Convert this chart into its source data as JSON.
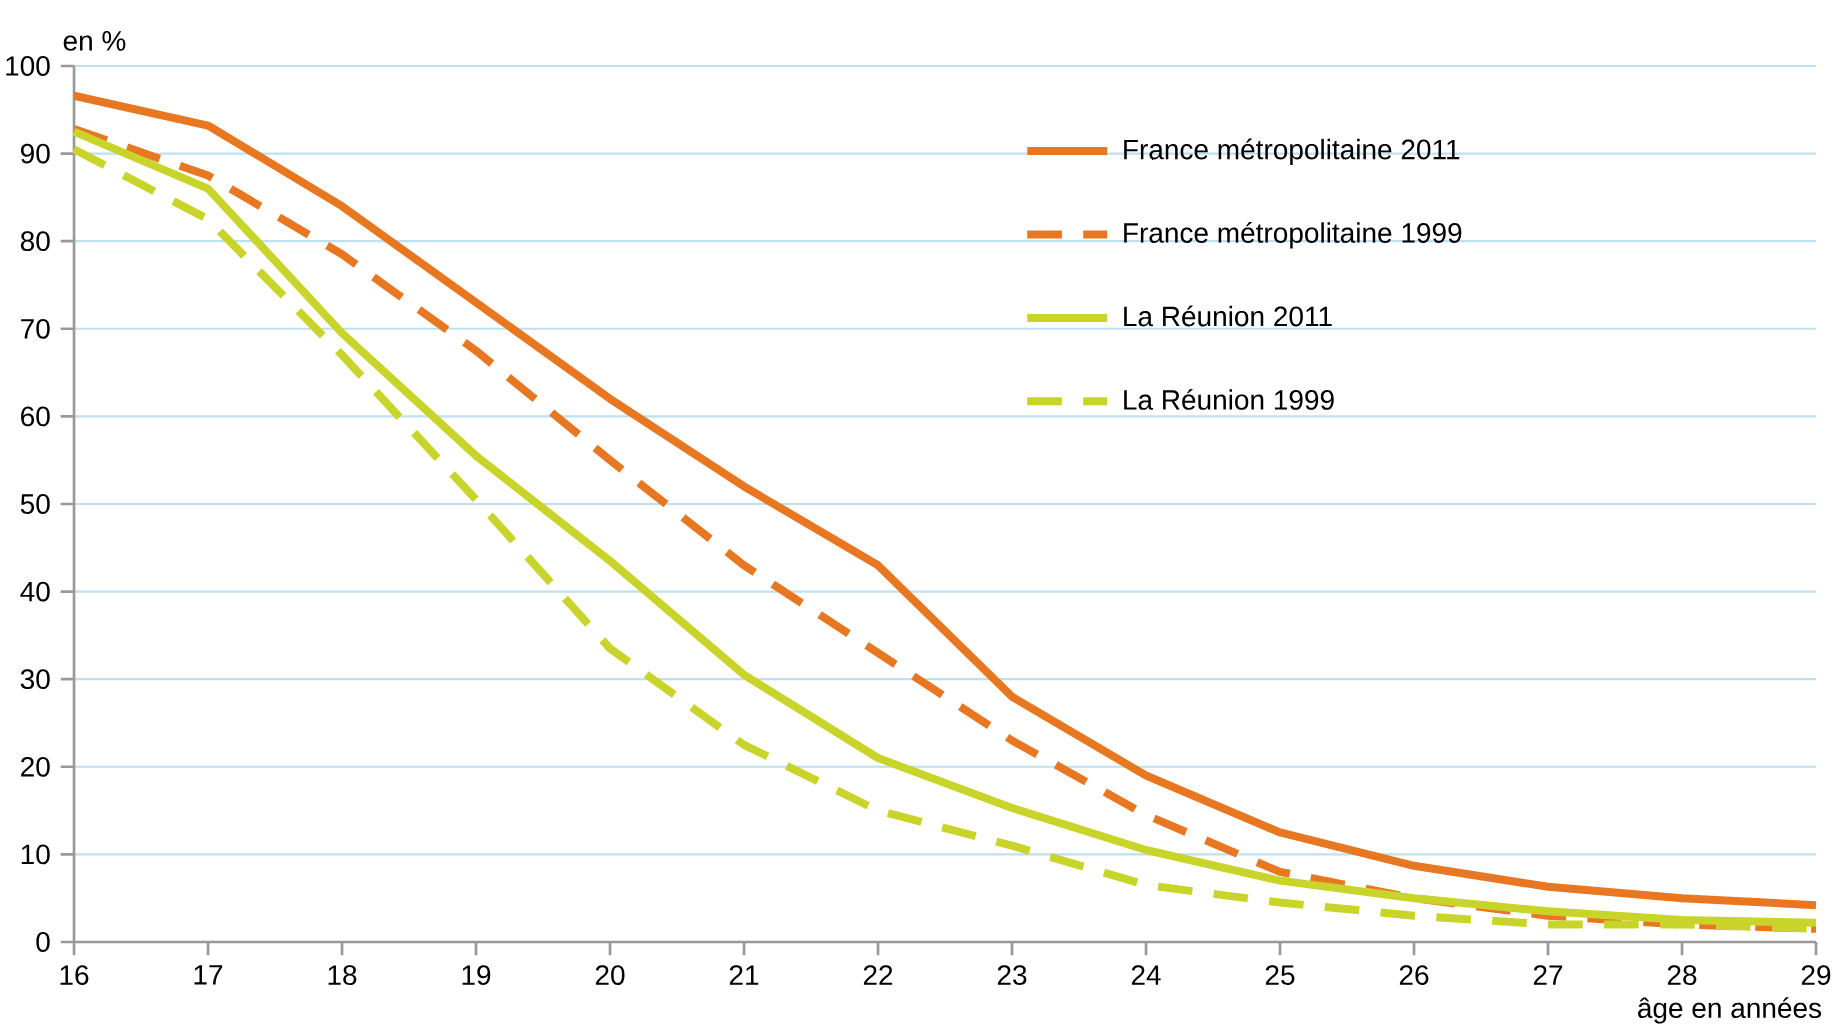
{
  "chart_data": {
    "type": "line",
    "ylabel": "en %",
    "xlabel": "âge en années",
    "x": [
      16,
      17,
      18,
      19,
      20,
      21,
      22,
      23,
      24,
      25,
      26,
      27,
      28,
      29
    ],
    "xlim": [
      16,
      29
    ],
    "xticks": [
      16,
      17,
      18,
      19,
      20,
      21,
      22,
      23,
      24,
      25,
      26,
      27,
      28,
      29
    ],
    "ylim": [
      0,
      100
    ],
    "yticks": [
      0,
      10,
      20,
      30,
      40,
      50,
      60,
      70,
      80,
      90,
      100
    ],
    "grid": "y",
    "legend": "top right",
    "series": [
      {
        "name": "France métropolitaine 2011",
        "color": "#e87722",
        "line_style": "solid",
        "values": [
          96.6,
          93.2,
          84,
          73,
          62,
          52,
          43,
          28,
          19,
          12.5,
          8.7,
          6.3,
          5,
          4.2
        ]
      },
      {
        "name": "France métropolitaine 1999",
        "color": "#e87722",
        "line_style": "dashed",
        "values": [
          92.8,
          87.5,
          78.5,
          67.5,
          55,
          43,
          33,
          23,
          14.5,
          8,
          5,
          3,
          2,
          1.5
        ]
      },
      {
        "name": "La Réunion 2011",
        "color": "#c8d42a",
        "line_style": "solid",
        "values": [
          92.5,
          86,
          69.5,
          55.5,
          43.5,
          30.5,
          21,
          15.3,
          10.5,
          7,
          5,
          3.5,
          2.5,
          2.2
        ]
      },
      {
        "name": "La Réunion 1999",
        "color": "#c8d42a",
        "line_style": "dashed",
        "values": [
          90.5,
          82.5,
          67,
          50.5,
          33.5,
          22.5,
          15,
          11,
          6.5,
          4.5,
          3,
          2,
          2,
          1.5
        ]
      }
    ]
  }
}
